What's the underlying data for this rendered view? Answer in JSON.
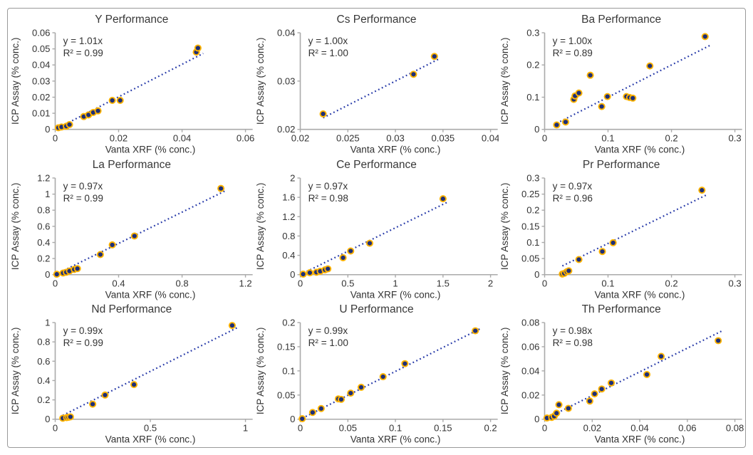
{
  "colors": {
    "marker_fill": "#1e2f78",
    "marker_ring": "#ffb300",
    "trendline": "#2639a8",
    "axis_line": "#aaaaaa",
    "text": "#333333",
    "border": "#9a9a9a",
    "background": "#ffffff"
  },
  "chart_data": [
    {
      "type": "scatter",
      "title": "Y Performance",
      "equation": "y = 1.01x",
      "r2": "R² = 0.99",
      "slope": 1.01,
      "xlabel": "Vanta XRF (% conc.)",
      "ylabel": "ICP Assay (% conc.)",
      "xlim": [
        0,
        0.06
      ],
      "ylim": [
        0,
        0.06
      ],
      "xticks": [
        0,
        0.02,
        0.04,
        0.06
      ],
      "yticks": [
        0,
        0.01,
        0.02,
        0.03,
        0.04,
        0.05,
        0.06
      ],
      "points": [
        [
          0.001,
          0.001
        ],
        [
          0.002,
          0.0015
        ],
        [
          0.0035,
          0.002
        ],
        [
          0.0045,
          0.003
        ],
        [
          0.009,
          0.008
        ],
        [
          0.0105,
          0.009
        ],
        [
          0.012,
          0.0105
        ],
        [
          0.0135,
          0.0115
        ],
        [
          0.018,
          0.018
        ],
        [
          0.0205,
          0.018
        ],
        [
          0.0445,
          0.048
        ],
        [
          0.045,
          0.0505
        ]
      ]
    },
    {
      "type": "scatter",
      "title": "Cs Performance",
      "equation": "y = 1.00x",
      "r2": "R² = 1.00",
      "slope": 1.0,
      "xlabel": "Vanta XRF (% conc.)",
      "ylabel": "ICP Assay (% conc.)",
      "xlim": [
        0.02,
        0.04
      ],
      "ylim": [
        0.02,
        0.04
      ],
      "xticks": [
        0.02,
        0.025,
        0.03,
        0.035,
        0.04
      ],
      "yticks": [
        0.02,
        0.03,
        0.04
      ],
      "points": [
        [
          0.0224,
          0.0232
        ],
        [
          0.0319,
          0.0314
        ],
        [
          0.0341,
          0.0351
        ]
      ]
    },
    {
      "type": "scatter",
      "title": "Ba Performance",
      "equation": "y = 1.00x",
      "r2": "R² = 0.89",
      "slope": 1.0,
      "xlabel": "Vanta XRF (% conc.)",
      "ylabel": "ICP Assay (% conc.)",
      "xlim": [
        0,
        0.3
      ],
      "ylim": [
        0,
        0.3
      ],
      "xticks": [
        0,
        0.1,
        0.2,
        0.3
      ],
      "yticks": [
        0,
        0.1,
        0.2,
        0.3
      ],
      "points": [
        [
          0.019,
          0.014
        ],
        [
          0.033,
          0.023
        ],
        [
          0.046,
          0.093
        ],
        [
          0.048,
          0.104
        ],
        [
          0.054,
          0.113
        ],
        [
          0.072,
          0.168
        ],
        [
          0.09,
          0.071
        ],
        [
          0.099,
          0.102
        ],
        [
          0.129,
          0.102
        ],
        [
          0.134,
          0.099
        ],
        [
          0.139,
          0.097
        ],
        [
          0.166,
          0.197
        ],
        [
          0.253,
          0.288
        ]
      ]
    },
    {
      "type": "scatter",
      "title": "La Performance",
      "equation": "y = 0.97x",
      "r2": "R² = 0.99",
      "slope": 0.97,
      "xlabel": "Vanta XRF (% conc.)",
      "ylabel": "ICP Assay (% conc.)",
      "xlim": [
        0,
        1.2
      ],
      "ylim": [
        0,
        1.2
      ],
      "xticks": [
        0,
        0.4,
        0.8,
        1.2
      ],
      "yticks": [
        0,
        0.2,
        0.4,
        0.6,
        0.8,
        1,
        1.2
      ],
      "points": [
        [
          0.01,
          0.005
        ],
        [
          0.05,
          0.02
        ],
        [
          0.07,
          0.03
        ],
        [
          0.09,
          0.045
        ],
        [
          0.12,
          0.065
        ],
        [
          0.14,
          0.075
        ],
        [
          0.285,
          0.25
        ],
        [
          0.36,
          0.37
        ],
        [
          0.5,
          0.48
        ],
        [
          1.045,
          1.07
        ]
      ]
    },
    {
      "type": "scatter",
      "title": "Ce Performance",
      "equation": "y = 0.97x",
      "r2": "R² = 0.98",
      "slope": 0.97,
      "xlabel": "Vanta XRF (% conc.)",
      "ylabel": "ICP Assay (% conc.)",
      "xlim": [
        0,
        2
      ],
      "ylim": [
        0,
        2
      ],
      "xticks": [
        0,
        0.5,
        1,
        1.5,
        2
      ],
      "yticks": [
        0,
        0.4,
        0.8,
        1.2,
        1.6,
        2
      ],
      "points": [
        [
          0.03,
          0.01
        ],
        [
          0.1,
          0.04
        ],
        [
          0.17,
          0.05
        ],
        [
          0.21,
          0.07
        ],
        [
          0.26,
          0.1
        ],
        [
          0.29,
          0.12
        ],
        [
          0.45,
          0.35
        ],
        [
          0.53,
          0.49
        ],
        [
          0.73,
          0.65
        ],
        [
          1.5,
          1.57
        ]
      ]
    },
    {
      "type": "scatter",
      "title": "Pr Performance",
      "equation": "y = 0.97x",
      "r2": "R² = 0.96",
      "slope": 0.97,
      "xlabel": "Vanta XRF (% conc.)",
      "ylabel": "ICP Assay (% conc.)",
      "xlim": [
        0,
        0.3
      ],
      "ylim": [
        0,
        0.3
      ],
      "xticks": [
        0,
        0.1,
        0.2,
        0.3
      ],
      "yticks": [
        0,
        0.05,
        0.1,
        0.15,
        0.2,
        0.25,
        0.3
      ],
      "points": [
        [
          0.028,
          0.002
        ],
        [
          0.031,
          0.004
        ],
        [
          0.035,
          0.009
        ],
        [
          0.038,
          0.012
        ],
        [
          0.054,
          0.047
        ],
        [
          0.091,
          0.072
        ],
        [
          0.108,
          0.099
        ],
        [
          0.248,
          0.262
        ]
      ]
    },
    {
      "type": "scatter",
      "title": "Nd Performance",
      "equation": "y = 0.99x",
      "r2": "R² = 0.99",
      "slope": 0.99,
      "xlabel": "Vanta XRF (% conc.)",
      "ylabel": "ICP Assay (% conc.)",
      "xlim": [
        0,
        1
      ],
      "ylim": [
        0,
        1
      ],
      "xticks": [
        0,
        0.5,
        1
      ],
      "yticks": [
        0,
        0.2,
        0.4,
        0.6,
        0.8,
        1
      ],
      "points": [
        [
          0.04,
          0.01
        ],
        [
          0.06,
          0.016
        ],
        [
          0.07,
          0.02
        ],
        [
          0.08,
          0.024
        ],
        [
          0.197,
          0.156
        ],
        [
          0.262,
          0.25
        ],
        [
          0.414,
          0.358
        ],
        [
          0.93,
          0.97
        ]
      ]
    },
    {
      "type": "scatter",
      "title": "U Performance",
      "equation": "y = 0.99x",
      "r2": "R² = 1.00",
      "slope": 0.99,
      "xlabel": "Vanta XRF (% conc.)",
      "ylabel": "ICP Assay (% conc.)",
      "xlim": [
        0,
        0.2
      ],
      "ylim": [
        0,
        0.2
      ],
      "xticks": [
        0,
        0.05,
        0.1,
        0.15,
        0.2
      ],
      "yticks": [
        0,
        0.05,
        0.1,
        0.15,
        0.2
      ],
      "points": [
        [
          0.002,
          0.001
        ],
        [
          0.013,
          0.014
        ],
        [
          0.022,
          0.022
        ],
        [
          0.04,
          0.042
        ],
        [
          0.043,
          0.041
        ],
        [
          0.053,
          0.054
        ],
        [
          0.064,
          0.066
        ],
        [
          0.087,
          0.088
        ],
        [
          0.11,
          0.115
        ],
        [
          0.184,
          0.183
        ]
      ]
    },
    {
      "type": "scatter",
      "title": "Th Performance",
      "equation": "y = 0.98x",
      "r2": "R² = 0.98",
      "slope": 0.98,
      "xlabel": "Vanta XRF (% conc.)",
      "ylabel": "ICP Assay (% conc.)",
      "xlim": [
        0,
        0.08
      ],
      "ylim": [
        0,
        0.08
      ],
      "xticks": [
        0,
        0.02,
        0.04,
        0.06,
        0.08
      ],
      "yticks": [
        0,
        0.02,
        0.04,
        0.06,
        0.08
      ],
      "points": [
        [
          0.001,
          0.001
        ],
        [
          0.003,
          0.0015
        ],
        [
          0.004,
          0.0025
        ],
        [
          0.005,
          0.005
        ],
        [
          0.006,
          0.012
        ],
        [
          0.01,
          0.009
        ],
        [
          0.019,
          0.015
        ],
        [
          0.021,
          0.021
        ],
        [
          0.024,
          0.025
        ],
        [
          0.028,
          0.03
        ],
        [
          0.043,
          0.037
        ],
        [
          0.049,
          0.052
        ],
        [
          0.073,
          0.065
        ]
      ]
    }
  ]
}
